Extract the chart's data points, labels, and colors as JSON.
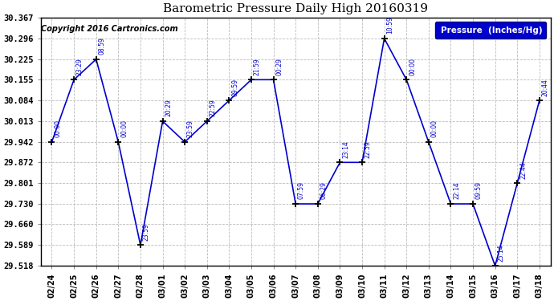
{
  "title": "Barometric Pressure Daily High 20160319",
  "copyright": "Copyright 2016 Cartronics.com",
  "legend_label": "Pressure  (Inches/Hg)",
  "dates": [
    "02/24",
    "02/25",
    "02/26",
    "02/27",
    "02/28",
    "03/01",
    "03/02",
    "03/03",
    "03/04",
    "03/05",
    "03/06",
    "03/07",
    "03/08",
    "03/09",
    "03/10",
    "03/11",
    "03/12",
    "03/13",
    "03/14",
    "03/15",
    "03/16",
    "03/17",
    "03/18"
  ],
  "pressures": [
    29.942,
    30.155,
    30.225,
    29.942,
    29.589,
    30.013,
    29.942,
    30.013,
    30.084,
    30.155,
    30.155,
    29.73,
    29.73,
    29.872,
    29.872,
    30.296,
    30.155,
    29.942,
    29.73,
    29.73,
    29.518,
    29.801,
    30.084
  ],
  "times": [
    "00:00",
    "23:29",
    "08:59",
    "00:00",
    "23:59",
    "20:29",
    "23:59",
    "22:59",
    "09:59",
    "21:59",
    "00:29",
    "07:59",
    "06:29",
    "23:14",
    "22:59",
    "10:59",
    "00:00",
    "00:00",
    "22:14",
    "09:59",
    "25:14",
    "22:44",
    "20:44"
  ],
  "yticks": [
    29.518,
    29.589,
    29.66,
    29.73,
    29.801,
    29.872,
    29.942,
    30.013,
    30.084,
    30.155,
    30.225,
    30.296,
    30.367
  ],
  "ymin": 29.518,
  "ymax": 30.367,
  "line_color": "#0000CD",
  "marker_color": "#000000",
  "bg_color": "#ffffff",
  "grid_color": "#bbbbbb",
  "title_color": "#000000",
  "label_color": "#0000CD",
  "legend_bg": "#0000CD",
  "legend_text_color": "#ffffff",
  "copyright_color": "#000000"
}
